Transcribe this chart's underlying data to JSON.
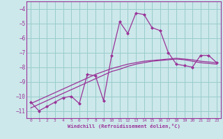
{
  "xlabel": "Windchill (Refroidissement éolien,°C)",
  "background_color": "#cce8ea",
  "grid_color": "#99cccc",
  "line_color": "#993399",
  "x": [
    0,
    1,
    2,
    3,
    4,
    5,
    6,
    7,
    8,
    9,
    10,
    11,
    12,
    13,
    14,
    15,
    16,
    17,
    18,
    19,
    20,
    21,
    22,
    23
  ],
  "y_main": [
    -10.4,
    -11.0,
    -10.7,
    -10.4,
    -10.1,
    -10.0,
    -10.5,
    -8.5,
    -8.6,
    -10.3,
    -7.2,
    -4.9,
    -5.7,
    -4.3,
    -4.4,
    -5.3,
    -5.5,
    -7.0,
    -7.8,
    -7.9,
    -8.0,
    -7.2,
    -7.2,
    -7.7
  ],
  "y_trend1": [
    -10.8,
    -10.55,
    -10.3,
    -10.05,
    -9.8,
    -9.55,
    -9.3,
    -9.05,
    -8.8,
    -8.55,
    -8.3,
    -8.15,
    -7.95,
    -7.8,
    -7.7,
    -7.6,
    -7.55,
    -7.5,
    -7.45,
    -7.5,
    -7.6,
    -7.7,
    -7.75,
    -7.8
  ],
  "y_trend2": [
    -10.5,
    -10.25,
    -10.0,
    -9.75,
    -9.5,
    -9.25,
    -9.0,
    -8.75,
    -8.5,
    -8.3,
    -8.1,
    -7.95,
    -7.8,
    -7.7,
    -7.6,
    -7.55,
    -7.5,
    -7.45,
    -7.4,
    -7.45,
    -7.5,
    -7.6,
    -7.65,
    -7.7
  ],
  "ylim": [
    -11.5,
    -3.5
  ],
  "xlim": [
    -0.5,
    23.5
  ],
  "yticks": [
    -11,
    -10,
    -9,
    -8,
    -7,
    -6,
    -5,
    -4
  ],
  "xticks": [
    0,
    1,
    2,
    3,
    4,
    5,
    6,
    7,
    8,
    9,
    10,
    11,
    12,
    13,
    14,
    15,
    16,
    17,
    18,
    19,
    20,
    21,
    22,
    23
  ]
}
